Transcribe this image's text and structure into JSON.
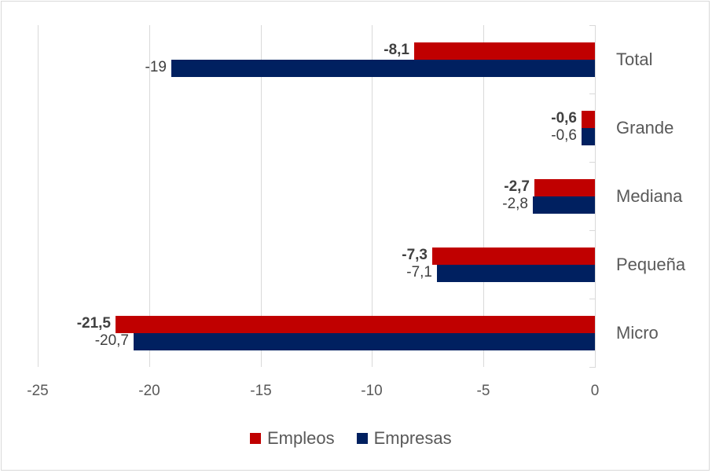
{
  "chart_data": {
    "type": "bar",
    "orientation": "horizontal",
    "title": "",
    "xlabel": "",
    "ylabel": "",
    "categories": [
      "Total",
      "Grande",
      "Mediana",
      "Pequeña",
      "Micro"
    ],
    "series": [
      {
        "name": "Empleos",
        "color": "#c00000",
        "values": [
          -8.1,
          -0.6,
          -2.7,
          -7.3,
          -21.5
        ],
        "labels": [
          "-8,1",
          "-0,6",
          "-2,7",
          "-7,3",
          "-21,5"
        ],
        "label_bold": true
      },
      {
        "name": "Empresas",
        "color": "#002060",
        "values": [
          -19,
          -0.6,
          -2.8,
          -7.1,
          -20.7
        ],
        "labels": [
          "-19",
          "-0,6",
          "-2,8",
          "-7,1",
          "-20,7"
        ],
        "label_bold": false
      }
    ],
    "xlim": [
      -25,
      0
    ],
    "x_ticks": [
      "-25",
      "-20",
      "-15",
      "-10",
      "-5",
      "0"
    ],
    "grid": true,
    "legend_position": "bottom"
  },
  "legend": {
    "items": [
      {
        "label": "Empleos",
        "color": "#c00000"
      },
      {
        "label": "Empresas",
        "color": "#002060"
      }
    ]
  }
}
